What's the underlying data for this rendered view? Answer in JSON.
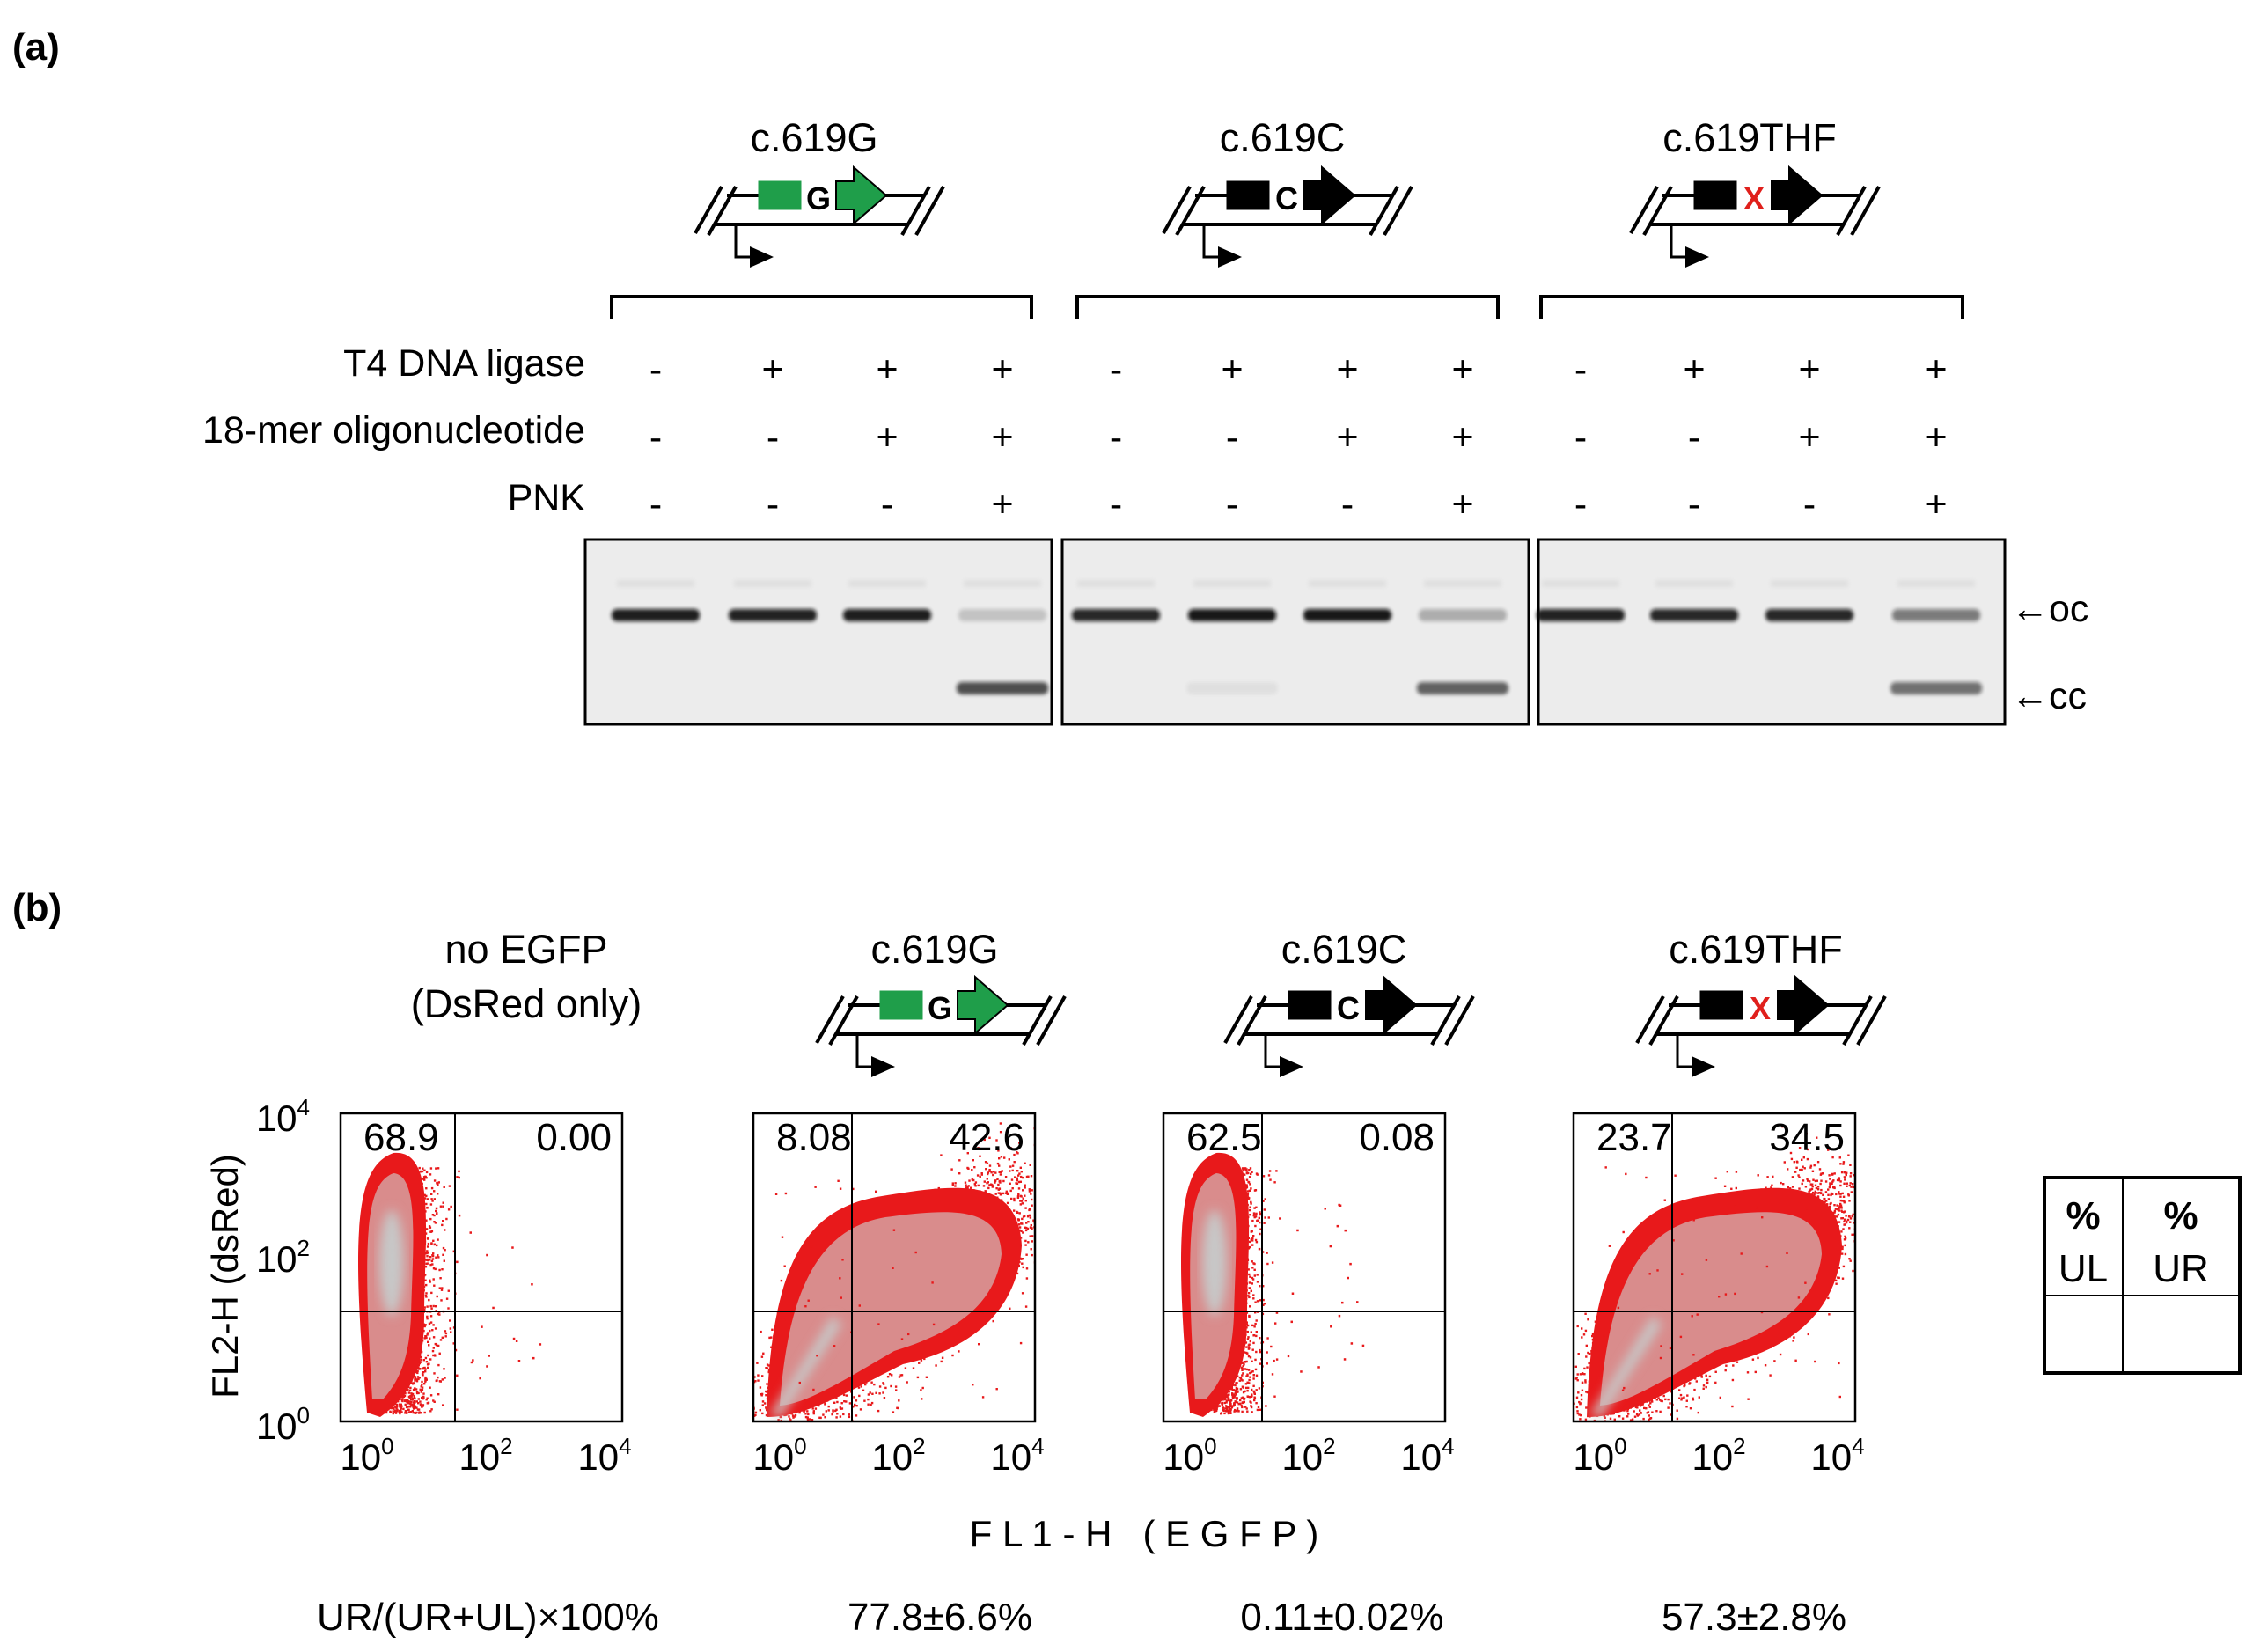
{
  "panel_a": {
    "label": "(a)",
    "constructs": [
      {
        "title": "c.619G",
        "letter": "G",
        "letter_color": "#000000",
        "box_color": "#1f9e4a",
        "arrow_color": "#1f9e4a"
      },
      {
        "title": "c.619C",
        "letter": "C",
        "letter_color": "#000000",
        "box_color": "#000000",
        "arrow_color": "#000000"
      },
      {
        "title": "c.619THF",
        "letter": "X",
        "letter_color": "#e0201c",
        "box_color": "#000000",
        "arrow_color": "#000000"
      }
    ],
    "rows": [
      {
        "label": "T4 DNA ligase",
        "signs": [
          "-",
          "+",
          "+",
          "+",
          "-",
          "+",
          "+",
          "+",
          "-",
          "+",
          "+",
          "+"
        ]
      },
      {
        "label": "18-mer oligonucleotide",
        "signs": [
          "-",
          "-",
          "+",
          "+",
          "-",
          "-",
          "+",
          "+",
          "-",
          "-",
          "+",
          "+"
        ]
      },
      {
        "label": "PNK",
        "signs": [
          "-",
          "-",
          "-",
          "+",
          "-",
          "-",
          "-",
          "+",
          "-",
          "-",
          "-",
          "+"
        ]
      }
    ],
    "band_labels": {
      "oc": "←oc",
      "cc": "←cc"
    },
    "oc_band_intensity": [
      0.92,
      0.9,
      0.92,
      0.18,
      0.88,
      0.95,
      0.95,
      0.28,
      0.9,
      0.88,
      0.88,
      0.5
    ],
    "cc_band_intensity": [
      0,
      0,
      0,
      0.7,
      0,
      0.05,
      0,
      0.62,
      0,
      0,
      0,
      0.55
    ]
  },
  "panel_b": {
    "label": "(b)",
    "plots": [
      {
        "title_lines": [
          "no EGFP",
          "(DsRed only)"
        ],
        "has_construct": false,
        "ul": "68.9",
        "ur": "0.00",
        "pattern": "neg"
      },
      {
        "title_lines": [
          "c.619G"
        ],
        "has_construct": true,
        "construct_index": 0,
        "ul": "8.08",
        "ur": "42.6",
        "pattern": "pos"
      },
      {
        "title_lines": [
          "c.619C"
        ],
        "has_construct": true,
        "construct_index": 1,
        "ul": "62.5",
        "ur": "0.08",
        "pattern": "neg"
      },
      {
        "title_lines": [
          "c.619THF"
        ],
        "has_construct": true,
        "construct_index": 2,
        "ul": "23.7",
        "ur": "34.5",
        "pattern": "pos"
      }
    ],
    "y_axis_label": "FL2-H (dsRed)",
    "x_axis_label": "F L 1 - H   ( E G F P )",
    "tick_base": "10",
    "tick_exponents": [
      "0",
      "2",
      "4"
    ],
    "ratio_label": "UR/(UR+UL)×100%",
    "ratios": [
      "77.8±6.6%",
      "0.11±0.02%",
      "57.3±2.8%"
    ],
    "legend_table": {
      "col1_top": "%",
      "col1_bottom": "UL",
      "col2_top": "%",
      "col2_bottom": "UR"
    }
  },
  "colors": {
    "dot_red": "#e8191b",
    "density_mid": "#d98c8c",
    "density_core": "#c7c7c7",
    "gel_bg": "#ececec",
    "band": "#111111"
  }
}
